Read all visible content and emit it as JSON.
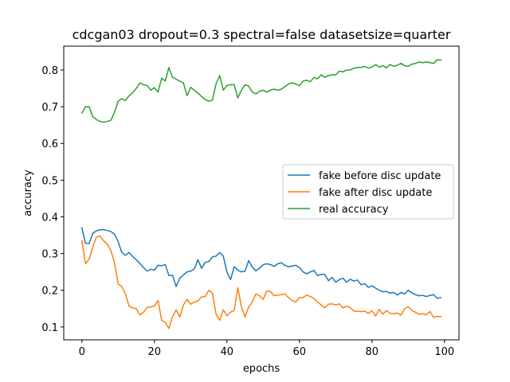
{
  "chart_data": {
    "type": "line",
    "title": "cdcgan03 dropout=0.3 spectral=false datasetsize=quarter",
    "xlabel": "epochs",
    "ylabel": "accuracy",
    "xlim": [
      -5,
      104
    ],
    "ylim": [
      0.065,
      0.865
    ],
    "xticks": [
      0,
      20,
      40,
      60,
      80,
      100
    ],
    "yticks": [
      0.1,
      0.2,
      0.3,
      0.4,
      0.5,
      0.6,
      0.7,
      0.8
    ],
    "grid": false,
    "legend_position": "center-right",
    "x_start": 0,
    "series": [
      {
        "name": "fake before disc update",
        "color": "#1f77b4",
        "values": [
          0.37,
          0.328,
          0.327,
          0.355,
          0.362,
          0.365,
          0.365,
          0.363,
          0.36,
          0.353,
          0.333,
          0.303,
          0.295,
          0.303,
          0.292,
          0.283,
          0.273,
          0.262,
          0.252,
          0.257,
          0.255,
          0.268,
          0.267,
          0.27,
          0.24,
          0.241,
          0.21,
          0.233,
          0.242,
          0.25,
          0.252,
          0.258,
          0.283,
          0.26,
          0.276,
          0.278,
          0.291,
          0.293,
          0.303,
          0.293,
          0.25,
          0.229,
          0.264,
          0.255,
          0.25,
          0.252,
          0.281,
          0.263,
          0.253,
          0.26,
          0.27,
          0.272,
          0.27,
          0.265,
          0.272,
          0.275,
          0.268,
          0.264,
          0.266,
          0.268,
          0.262,
          0.25,
          0.245,
          0.25,
          0.254,
          0.24,
          0.243,
          0.243,
          0.226,
          0.235,
          0.222,
          0.229,
          0.233,
          0.222,
          0.23,
          0.225,
          0.228,
          0.215,
          0.218,
          0.208,
          0.212,
          0.206,
          0.2,
          0.196,
          0.197,
          0.192,
          0.194,
          0.187,
          0.194,
          0.19,
          0.2,
          0.193,
          0.188,
          0.185,
          0.186,
          0.183,
          0.186,
          0.188,
          0.178,
          0.18
        ]
      },
      {
        "name": "fake after disc update",
        "color": "#ff7f0e",
        "values": [
          0.335,
          0.272,
          0.285,
          0.318,
          0.345,
          0.348,
          0.335,
          0.325,
          0.308,
          0.275,
          0.217,
          0.21,
          0.19,
          0.157,
          0.152,
          0.15,
          0.133,
          0.14,
          0.153,
          0.155,
          0.157,
          0.172,
          0.118,
          0.113,
          0.096,
          0.128,
          0.147,
          0.127,
          0.16,
          0.175,
          0.162,
          0.168,
          0.171,
          0.182,
          0.183,
          0.2,
          0.192,
          0.135,
          0.118,
          0.147,
          0.13,
          0.14,
          0.145,
          0.207,
          0.155,
          0.127,
          0.155,
          0.168,
          0.19,
          0.185,
          0.175,
          0.198,
          0.197,
          0.185,
          0.187,
          0.188,
          0.19,
          0.18,
          0.172,
          0.168,
          0.18,
          0.18,
          0.187,
          0.183,
          0.178,
          0.168,
          0.16,
          0.152,
          0.162,
          0.163,
          0.16,
          0.163,
          0.152,
          0.156,
          0.153,
          0.143,
          0.143,
          0.142,
          0.143,
          0.137,
          0.144,
          0.13,
          0.148,
          0.135,
          0.145,
          0.137,
          0.136,
          0.138,
          0.132,
          0.15,
          0.155,
          0.145,
          0.14,
          0.135,
          0.136,
          0.133,
          0.142,
          0.126,
          0.129,
          0.128
        ]
      },
      {
        "name": "real accuracy",
        "color": "#2ca02c",
        "values": [
          0.683,
          0.7,
          0.7,
          0.673,
          0.665,
          0.66,
          0.658,
          0.66,
          0.663,
          0.685,
          0.715,
          0.722,
          0.717,
          0.73,
          0.738,
          0.75,
          0.765,
          0.76,
          0.758,
          0.745,
          0.752,
          0.74,
          0.778,
          0.77,
          0.807,
          0.78,
          0.775,
          0.77,
          0.765,
          0.73,
          0.753,
          0.745,
          0.737,
          0.728,
          0.72,
          0.715,
          0.718,
          0.762,
          0.785,
          0.745,
          0.758,
          0.76,
          0.76,
          0.724,
          0.745,
          0.76,
          0.756,
          0.74,
          0.735,
          0.742,
          0.745,
          0.74,
          0.745,
          0.748,
          0.745,
          0.748,
          0.755,
          0.762,
          0.765,
          0.762,
          0.757,
          0.77,
          0.772,
          0.768,
          0.78,
          0.776,
          0.787,
          0.78,
          0.785,
          0.787,
          0.787,
          0.797,
          0.795,
          0.8,
          0.8,
          0.805,
          0.807,
          0.807,
          0.81,
          0.805,
          0.808,
          0.815,
          0.808,
          0.812,
          0.806,
          0.815,
          0.81,
          0.813,
          0.818,
          0.812,
          0.81,
          0.816,
          0.818,
          0.822,
          0.82,
          0.822,
          0.82,
          0.818,
          0.828,
          0.827
        ]
      }
    ]
  }
}
